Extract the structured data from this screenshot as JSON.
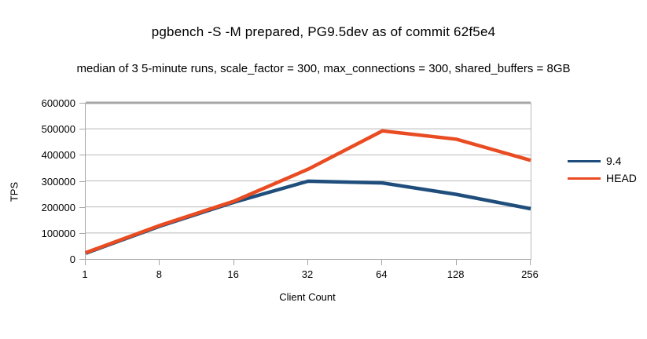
{
  "chart_data": {
    "type": "line",
    "title": "pgbench -S -M prepared, PG9.5dev as of commit 62f5e4",
    "subtitle": "median of 3 5-minute runs, scale_factor = 300, max_connections = 300, shared_buffers = 8GB",
    "xlabel": "Client Count",
    "ylabel": "TPS",
    "categories": [
      "1",
      "8",
      "16",
      "32",
      "64",
      "128",
      "256"
    ],
    "x_spacing": "equidistant (powers of two)",
    "ylim": [
      0,
      600000
    ],
    "ytick_step": 100000,
    "yticks": [
      0,
      100000,
      200000,
      300000,
      400000,
      500000,
      600000
    ],
    "grid": "horizontal gridlines on",
    "legend_position": "right",
    "series": [
      {
        "name": "9.4",
        "color": "#1f4e7c",
        "values": [
          22000,
          126000,
          218000,
          299000,
          292000,
          248000,
          193000
        ]
      },
      {
        "name": "HEAD",
        "color": "#e94c22",
        "values": [
          24000,
          129000,
          222000,
          345000,
          492000,
          460000,
          379000
        ]
      }
    ],
    "colors": {
      "grid": "#b9b9b9",
      "frame_top": "#a6a6a6",
      "axis": "#a6a6a6",
      "text": "#000000",
      "background": "#ffffff"
    }
  }
}
